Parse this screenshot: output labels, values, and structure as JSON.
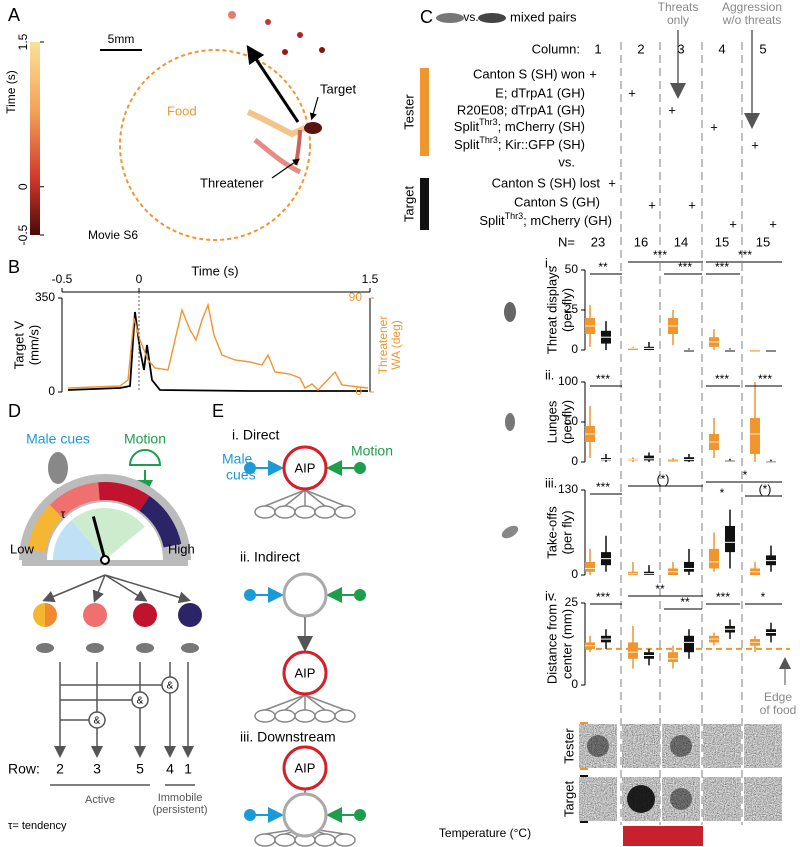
{
  "panels": {
    "A": {
      "label": "A",
      "scale_bar": "5mm",
      "colorbar_title": "Time (s)",
      "colorbar_ticks": [
        1.5,
        0,
        -0.5
      ],
      "food": "Food",
      "target": "Target",
      "threatener": "Threatener",
      "movie": "Movie S6"
    },
    "B": {
      "label": "B",
      "x_title": "Time (s)",
      "xticks": [
        -0.5,
        0,
        1.5
      ],
      "left_title": [
        "Target V",
        "(mm/s)"
      ],
      "left_ticks": [
        350,
        0
      ],
      "right_title": [
        "Threatener",
        "WA (deg)"
      ],
      "right_ticks": [
        90,
        0
      ]
    },
    "C": {
      "label": "C",
      "vs": "vs.",
      "mixed": "mixed pairs",
      "threats_only": [
        "Threats",
        "only"
      ],
      "aggression": [
        "Aggression",
        "w/o threats"
      ],
      "column_title": "Column:",
      "columns": [
        1,
        2,
        3,
        4,
        5
      ],
      "tester_title": "Tester",
      "tester_rows": [
        {
          "text": "Canton S (SH) won",
          "marks": [
            "+"
          ]
        },
        {
          "text": "E; dTrpA1 (GH)",
          "marks": [
            "+"
          ]
        },
        {
          "text": "R20E08; dTrpA1 (GH)",
          "marks": [
            "+"
          ]
        },
        {
          "pre": "Split",
          "sup": "Thr3",
          "post": "; mCherry (SH)",
          "marks": [
            "+"
          ]
        },
        {
          "pre": "Split",
          "sup": "Thr3",
          "post": "; Kir::GFP (SH)",
          "marks": [
            "+"
          ]
        }
      ],
      "vs2": "vs.",
      "target_title": "Target",
      "target_rows": [
        {
          "text": "Canton S (SH) lost",
          "marks": [
            "+"
          ]
        },
        {
          "text": "Canton S (GH)",
          "marks": [
            "+",
            "+"
          ]
        },
        {
          "pre": "Split",
          "sup": "Thr3",
          "post": "; mCherry (GH)",
          "marks": [
            "+",
            "+"
          ]
        }
      ],
      "n_title": "N=",
      "n": [
        23,
        16,
        14,
        15,
        15
      ],
      "subpanels": [
        {
          "label": "i.",
          "y_title": [
            "Threat displays",
            "(per fly)"
          ],
          "ylim": [
            0,
            50
          ],
          "yticks": [
            50,
            25,
            0
          ],
          "stars": [
            "**",
            "***",
            "***",
            "***",
            "***"
          ],
          "boxes": [
            [
              2,
              10,
              15,
              20,
              28
            ],
            [
              0,
              4,
              8,
              12,
              18
            ],
            [
              0,
              0,
              1,
              1,
              2
            ],
            [
              0,
              0,
              1,
              2,
              5
            ],
            [
              3,
              10,
              15,
              20,
              25
            ],
            [
              0,
              0,
              0,
              0,
              1
            ],
            [
              0,
              2,
              5,
              8,
              13
            ],
            [
              0,
              0,
              0,
              0,
              1
            ],
            [
              0,
              0,
              0,
              0,
              0
            ],
            [
              0,
              0,
              0,
              0,
              0
            ]
          ]
        },
        {
          "label": "ii.",
          "y_title": [
            "Lunges",
            "(per fly)"
          ],
          "ylim": [
            0,
            100
          ],
          "yticks": [
            100,
            50,
            0
          ],
          "stars": [
            "***",
            "***",
            "***"
          ],
          "boxes": [
            [
              5,
              25,
              35,
              45,
              70
            ],
            [
              0,
              2,
              3,
              5,
              10
            ],
            [
              0,
              2,
              3,
              4,
              6
            ],
            [
              0,
              2,
              4,
              8,
              12
            ],
            [
              0,
              0,
              1,
              3,
              5
            ],
            [
              0,
              1,
              3,
              6,
              10
            ],
            [
              5,
              15,
              25,
              35,
              55
            ],
            [
              0,
              0,
              1,
              2,
              4
            ],
            [
              0,
              10,
              35,
              55,
              100
            ],
            [
              0,
              0,
              0,
              1,
              3
            ]
          ]
        },
        {
          "label": "iii.",
          "y_title": [
            "Take-offs",
            "(per fly)"
          ],
          "ylim": [
            0,
            130
          ],
          "yticks": [
            130,
            0
          ],
          "stars": [
            "***",
            "(*)",
            "*",
            "*",
            "(*)"
          ],
          "boxes": [
            [
              0,
              5,
              10,
              20,
              40
            ],
            [
              5,
              15,
              25,
              35,
              60
            ],
            [
              0,
              0,
              2,
              5,
              20
            ],
            [
              0,
              0,
              2,
              5,
              15
            ],
            [
              0,
              0,
              5,
              10,
              20
            ],
            [
              0,
              5,
              10,
              20,
              40
            ],
            [
              5,
              10,
              20,
              40,
              65
            ],
            [
              10,
              35,
              50,
              75,
              100
            ],
            [
              0,
              0,
              5,
              10,
              20
            ],
            [
              5,
              15,
              22,
              30,
              45
            ]
          ]
        },
        {
          "label": "iv.",
          "y_title": [
            "Distance from",
            "center (mm)"
          ],
          "ylim": [
            0,
            25
          ],
          "yticks": [
            25,
            0
          ],
          "stars": [
            "***",
            "**",
            "**",
            "***",
            "*"
          ],
          "boxes": [
            [
              10,
              11,
              12,
              13,
              15
            ],
            [
              11,
              13,
              14,
              15,
              17
            ],
            [
              5,
              8,
              10,
              13,
              18
            ],
            [
              6,
              8,
              9,
              10,
              11
            ],
            [
              5,
              7,
              8,
              10,
              12
            ],
            [
              8,
              10,
              13,
              15,
              17
            ],
            [
              12,
              13,
              14,
              15,
              16
            ],
            [
              14,
              16,
              17,
              18,
              20
            ],
            [
              10,
              12,
              13,
              14,
              15
            ],
            [
              13,
              15,
              16,
              17,
              19
            ]
          ],
          "edge_value": 11
        }
      ],
      "edge": [
        "Edge",
        "of food"
      ],
      "heat_tester": "Tester",
      "heat_target": "Target",
      "temperature": "Temperature (°C)"
    },
    "D": {
      "label": "D",
      "male_cues": "Male cues",
      "motion": "Motion",
      "tau": "τ",
      "low": "Low",
      "high": "High",
      "logic_symbols": [
        "&",
        "&",
        "&"
      ],
      "row_title": "Row:",
      "rows": [
        2,
        3,
        5,
        4,
        1
      ],
      "active": "Active",
      "immobile": [
        "Immobile",
        "(persistent)"
      ],
      "tau_note": "τ= tendency"
    },
    "E": {
      "label": "E",
      "direct": "i. Direct",
      "male_cues": [
        "Male",
        "cues"
      ],
      "motion": "Motion",
      "aip": [
        "AIP",
        "AIP",
        "AIP"
      ],
      "indirect": "ii. Indirect",
      "downstream": "iii. Downstream"
    }
  }
}
